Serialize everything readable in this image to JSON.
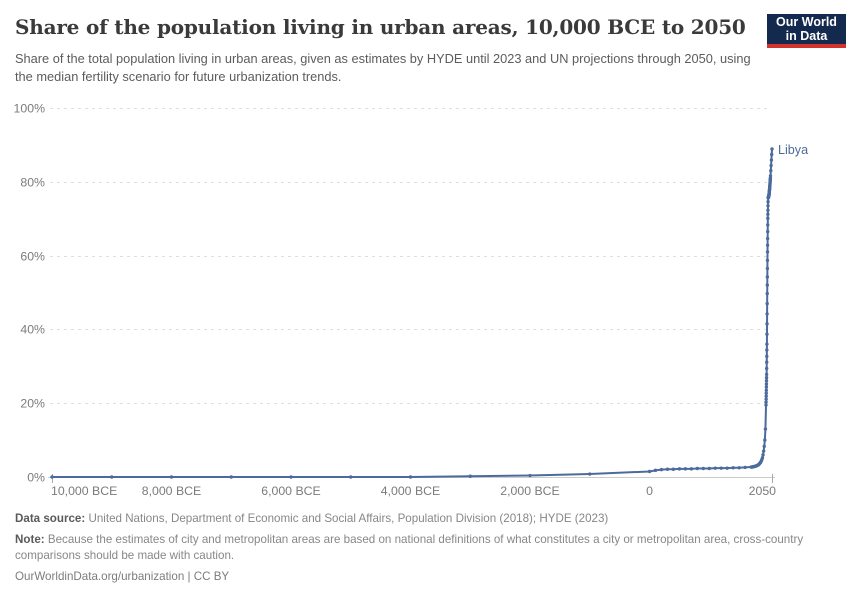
{
  "header": {
    "title": "Share of the population living in urban areas, 10,000 BCE to 2050",
    "subtitle": "Share of the total population living in urban areas, given as estimates by HYDE until 2023 and UN projections through 2050, using the median fertility scenario for future urbanization trends.",
    "logo": {
      "line1": "Our World",
      "line2": "in Data"
    }
  },
  "chart_data": {
    "type": "line",
    "title": "Share of the population living in urban areas, 10,000 BCE to 2050",
    "entity_label": "Libya",
    "x_range": [
      -10000,
      2050
    ],
    "y_range": [
      0,
      100
    ],
    "grid": "horizontal-dashed",
    "legend_position": "end-of-line-label",
    "y_ticks": [
      {
        "value": 0,
        "label": "0%"
      },
      {
        "value": 20,
        "label": "20%"
      },
      {
        "value": 40,
        "label": "40%"
      },
      {
        "value": 60,
        "label": "60%"
      },
      {
        "value": 80,
        "label": "80%"
      },
      {
        "value": 100,
        "label": "100%"
      }
    ],
    "x_ticks": [
      {
        "year": -10000,
        "label": "10,000 BCE",
        "anchor": "start"
      },
      {
        "year": -8000,
        "label": "8,000 BCE",
        "anchor": "middle"
      },
      {
        "year": -6000,
        "label": "6,000 BCE",
        "anchor": "middle"
      },
      {
        "year": -4000,
        "label": "4,000 BCE",
        "anchor": "middle"
      },
      {
        "year": -2000,
        "label": "2,000 BCE",
        "anchor": "middle"
      },
      {
        "year": 0,
        "label": "0",
        "anchor": "middle"
      },
      {
        "year": 2050,
        "label": "2050",
        "anchor": "end"
      }
    ],
    "series": [
      {
        "name": "Libya",
        "color": "#4c6a9c",
        "points": [
          [
            -10000,
            0
          ],
          [
            -9000,
            0
          ],
          [
            -8000,
            0
          ],
          [
            -7000,
            0
          ],
          [
            -6000,
            0
          ],
          [
            -5000,
            0
          ],
          [
            -4000,
            0
          ],
          [
            -3000,
            0.2
          ],
          [
            -2000,
            0.4
          ],
          [
            -1000,
            0.8
          ],
          [
            0,
            1.5
          ],
          [
            100,
            1.8
          ],
          [
            200,
            2
          ],
          [
            300,
            2.1
          ],
          [
            400,
            2.1
          ],
          [
            500,
            2.2
          ],
          [
            600,
            2.2
          ],
          [
            700,
            2.2
          ],
          [
            800,
            2.3
          ],
          [
            900,
            2.3
          ],
          [
            1000,
            2.3
          ],
          [
            1100,
            2.4
          ],
          [
            1200,
            2.4
          ],
          [
            1300,
            2.4
          ],
          [
            1400,
            2.5
          ],
          [
            1500,
            2.5
          ],
          [
            1600,
            2.6
          ],
          [
            1700,
            2.7
          ],
          [
            1710,
            2.7
          ],
          [
            1720,
            2.7
          ],
          [
            1730,
            2.8
          ],
          [
            1740,
            2.8
          ],
          [
            1750,
            2.8
          ],
          [
            1760,
            2.9
          ],
          [
            1770,
            2.9
          ],
          [
            1780,
            3
          ],
          [
            1790,
            3
          ],
          [
            1800,
            3.1
          ],
          [
            1810,
            3.2
          ],
          [
            1820,
            3.3
          ],
          [
            1830,
            3.4
          ],
          [
            1840,
            3.6
          ],
          [
            1850,
            3.8
          ],
          [
            1860,
            4
          ],
          [
            1870,
            4.3
          ],
          [
            1880,
            4.7
          ],
          [
            1890,
            5.2
          ],
          [
            1900,
            6
          ],
          [
            1910,
            7
          ],
          [
            1920,
            8.3
          ],
          [
            1930,
            10
          ],
          [
            1940,
            13
          ],
          [
            1950,
            19.5
          ],
          [
            1951,
            20.3
          ],
          [
            1952,
            21.1
          ],
          [
            1953,
            21.9
          ],
          [
            1954,
            22.7
          ],
          [
            1955,
            23.5
          ],
          [
            1956,
            24.4
          ],
          [
            1957,
            25.2
          ],
          [
            1958,
            26.1
          ],
          [
            1959,
            26.9
          ],
          [
            1960,
            27.8
          ],
          [
            1961,
            29.4
          ],
          [
            1962,
            31.1
          ],
          [
            1963,
            32.7
          ],
          [
            1964,
            34.4
          ],
          [
            1965,
            36
          ],
          [
            1966,
            38.7
          ],
          [
            1967,
            41.5
          ],
          [
            1968,
            44.2
          ],
          [
            1969,
            47
          ],
          [
            1970,
            49.7
          ],
          [
            1971,
            52
          ],
          [
            1972,
            54.2
          ],
          [
            1973,
            56.5
          ],
          [
            1974,
            58.7
          ],
          [
            1975,
            61
          ],
          [
            1976,
            62.8
          ],
          [
            1977,
            64.6
          ],
          [
            1978,
            66.5
          ],
          [
            1979,
            68.3
          ],
          [
            1980,
            70.1
          ],
          [
            1981,
            71.2
          ],
          [
            1982,
            72.3
          ],
          [
            1983,
            73.5
          ],
          [
            1984,
            74.6
          ],
          [
            1985,
            75.7
          ],
          [
            1986,
            75.7
          ],
          [
            1987,
            75.7
          ],
          [
            1988,
            75.7
          ],
          [
            1989,
            75.7
          ],
          [
            1990,
            75.7
          ],
          [
            1991,
            75.8
          ],
          [
            1992,
            75.9
          ],
          [
            1993,
            76
          ],
          [
            1994,
            76.1
          ],
          [
            1995,
            76.2
          ],
          [
            1996,
            76.2
          ],
          [
            1997,
            76.3
          ],
          [
            1998,
            76.3
          ],
          [
            1999,
            76.4
          ],
          [
            2000,
            76.4
          ],
          [
            2001,
            76.6
          ],
          [
            2002,
            76.8
          ],
          [
            2003,
            76.9
          ],
          [
            2004,
            77.1
          ],
          [
            2005,
            77.3
          ],
          [
            2006,
            77.5
          ],
          [
            2007,
            77.6
          ],
          [
            2008,
            77.8
          ],
          [
            2009,
            77.9
          ],
          [
            2010,
            78.1
          ],
          [
            2011,
            78.3
          ],
          [
            2012,
            78.5
          ],
          [
            2013,
            78.7
          ],
          [
            2014,
            78.9
          ],
          [
            2015,
            79.1
          ],
          [
            2016,
            79.4
          ],
          [
            2017,
            79.6
          ],
          [
            2018,
            79.9
          ],
          [
            2019,
            80.1
          ],
          [
            2020,
            80.4
          ],
          [
            2021,
            80.6
          ],
          [
            2022,
            80.8
          ],
          [
            2023,
            81
          ],
          [
            2025,
            81.6
          ],
          [
            2030,
            83
          ],
          [
            2035,
            84.4
          ],
          [
            2040,
            85.9
          ],
          [
            2045,
            87.4
          ],
          [
            2050,
            88.9
          ]
        ]
      }
    ]
  },
  "colors": {
    "line": "#4c6a9c",
    "grid": "#dedede",
    "axis": "#cccccc",
    "tick_mark": "#a8a8a8",
    "tick_text": "#7b7b7b",
    "logo_bg": "#14294e",
    "logo_accent": "#d0342c"
  },
  "footer": {
    "data_source_label": "Data source:",
    "data_source_text": " United Nations, Department of Economic and Social Affairs, Population Division (2018); HYDE (2023)",
    "note_label": "Note:",
    "note_text": " Because the estimates of city and metropolitan areas are based on national definitions of what constitutes a city or metropolitan area, cross-country comparisons should be made with caution.",
    "link": "OurWorldinData.org/urbanization | CC BY"
  }
}
